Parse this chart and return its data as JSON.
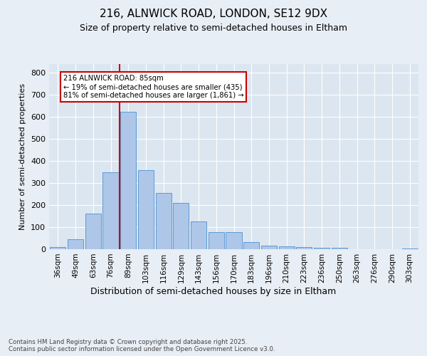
{
  "title1": "216, ALNWICK ROAD, LONDON, SE12 9DX",
  "title2": "Size of property relative to semi-detached houses in Eltham",
  "xlabel": "Distribution of semi-detached houses by size in Eltham",
  "ylabel": "Number of semi-detached properties",
  "categories": [
    "36sqm",
    "49sqm",
    "63sqm",
    "76sqm",
    "89sqm",
    "103sqm",
    "116sqm",
    "129sqm",
    "143sqm",
    "156sqm",
    "170sqm",
    "183sqm",
    "196sqm",
    "210sqm",
    "223sqm",
    "236sqm",
    "250sqm",
    "263sqm",
    "276sqm",
    "290sqm",
    "303sqm"
  ],
  "values": [
    10,
    45,
    160,
    350,
    625,
    360,
    255,
    210,
    125,
    78,
    78,
    33,
    16,
    13,
    10,
    6,
    6,
    0,
    0,
    0,
    3
  ],
  "bar_color": "#aec6e8",
  "bar_edge_color": "#5b9bd5",
  "vline_color": "#cc0000",
  "annotation_text": "216 ALNWICK ROAD: 85sqm\n← 19% of semi-detached houses are smaller (435)\n81% of semi-detached houses are larger (1,861) →",
  "annotation_box_color": "#cc0000",
  "ylim": [
    0,
    840
  ],
  "yticks": [
    0,
    100,
    200,
    300,
    400,
    500,
    600,
    700,
    800
  ],
  "footer": "Contains HM Land Registry data © Crown copyright and database right 2025.\nContains public sector information licensed under the Open Government Licence v3.0.",
  "bg_color": "#e8eef5",
  "plot_bg_color": "#dce6f0"
}
